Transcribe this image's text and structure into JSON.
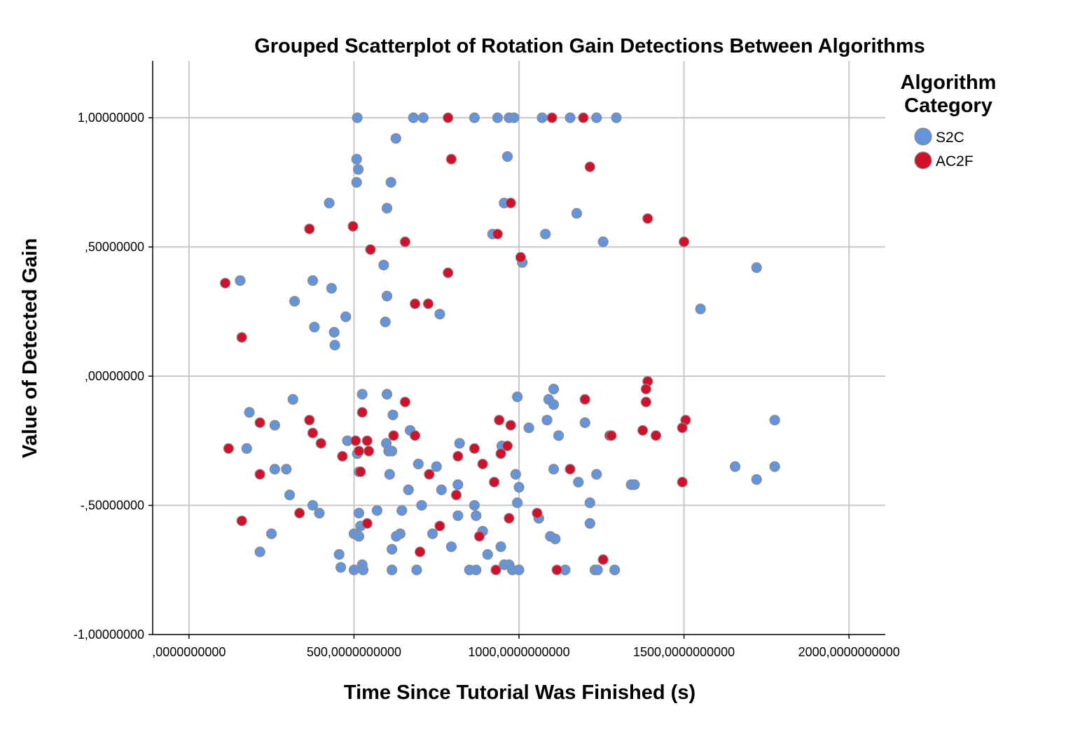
{
  "chart_data": {
    "type": "scatter",
    "title": "Grouped Scatterplot of Rotation Gain Detections Between Algorithms",
    "xlabel": "Time Since Tutorial Was Finished (s)",
    "ylabel": "Value of Detected Gain",
    "xlim": [
      -110,
      2110
    ],
    "ylim": [
      -1.0,
      1.22
    ],
    "grid": true,
    "xticks": [
      0,
      500,
      1000,
      1500,
      2000
    ],
    "xtick_labels": [
      ",0000000000",
      "500,0000000000",
      "1000,0000000000",
      "1500,0000000000",
      "2000,0000000000"
    ],
    "yticks": [
      1.0,
      0.5,
      0.0,
      -0.5,
      -1.0
    ],
    "ytick_labels": [
      "1,00000000",
      ",50000000",
      ",00000000",
      "-,50000000",
      "-1,00000000"
    ],
    "legend": {
      "title": "Algorithm Category",
      "position": "top-right"
    },
    "series": [
      {
        "name": "S2C",
        "color": "#6495dc",
        "points": [
          [
            510,
            1.0
          ],
          [
            680,
            1.0
          ],
          [
            710,
            1.0
          ],
          [
            865,
            1.0
          ],
          [
            935,
            1.0
          ],
          [
            970,
            1.0
          ],
          [
            985,
            1.0
          ],
          [
            1070,
            1.0
          ],
          [
            1155,
            1.0
          ],
          [
            1235,
            1.0
          ],
          [
            1295,
            1.0
          ],
          [
            627,
            0.92
          ],
          [
            965,
            0.85
          ],
          [
            508,
            0.84
          ],
          [
            513,
            0.8
          ],
          [
            508,
            0.75
          ],
          [
            612,
            0.75
          ],
          [
            425,
            0.67
          ],
          [
            955,
            0.67
          ],
          [
            600,
            0.65
          ],
          [
            1175,
            0.63
          ],
          [
            920,
            0.55
          ],
          [
            1080,
            0.55
          ],
          [
            1255,
            0.52
          ],
          [
            1010,
            0.44
          ],
          [
            590,
            0.43
          ],
          [
            1720,
            0.42
          ],
          [
            155,
            0.37
          ],
          [
            375,
            0.37
          ],
          [
            432,
            0.34
          ],
          [
            600,
            0.31
          ],
          [
            320,
            0.29
          ],
          [
            1550,
            0.26
          ],
          [
            760,
            0.24
          ],
          [
            475,
            0.23
          ],
          [
            595,
            0.21
          ],
          [
            380,
            0.19
          ],
          [
            440,
            0.17
          ],
          [
            442,
            0.12
          ],
          [
            1105,
            -0.05
          ],
          [
            525,
            -0.07
          ],
          [
            600,
            -0.07
          ],
          [
            995,
            -0.08
          ],
          [
            315,
            -0.09
          ],
          [
            1090,
            -0.09
          ],
          [
            1105,
            -0.11
          ],
          [
            183,
            -0.14
          ],
          [
            618,
            -0.15
          ],
          [
            1085,
            -0.17
          ],
          [
            1775,
            -0.17
          ],
          [
            1200,
            -0.18
          ],
          [
            260,
            -0.19
          ],
          [
            1030,
            -0.2
          ],
          [
            670,
            -0.21
          ],
          [
            1120,
            -0.23
          ],
          [
            480,
            -0.25
          ],
          [
            598,
            -0.26
          ],
          [
            820,
            -0.26
          ],
          [
            948,
            -0.27
          ],
          [
            175,
            -0.28
          ],
          [
            605,
            -0.29
          ],
          [
            615,
            -0.29
          ],
          [
            510,
            -0.3
          ],
          [
            695,
            -0.34
          ],
          [
            750,
            -0.35
          ],
          [
            1655,
            -0.35
          ],
          [
            1775,
            -0.35
          ],
          [
            260,
            -0.36
          ],
          [
            295,
            -0.36
          ],
          [
            1105,
            -0.36
          ],
          [
            515,
            -0.37
          ],
          [
            608,
            -0.38
          ],
          [
            990,
            -0.38
          ],
          [
            1235,
            -0.38
          ],
          [
            1180,
            -0.41
          ],
          [
            815,
            -0.42
          ],
          [
            1340,
            -0.42
          ],
          [
            1350,
            -0.42
          ],
          [
            1720,
            -0.4
          ],
          [
            1000,
            -0.43
          ],
          [
            765,
            -0.44
          ],
          [
            665,
            -0.44
          ],
          [
            305,
            -0.46
          ],
          [
            705,
            -0.5
          ],
          [
            995,
            -0.49
          ],
          [
            865,
            -0.5
          ],
          [
            1215,
            -0.49
          ],
          [
            375,
            -0.5
          ],
          [
            570,
            -0.52
          ],
          [
            645,
            -0.52
          ],
          [
            395,
            -0.53
          ],
          [
            515,
            -0.53
          ],
          [
            815,
            -0.54
          ],
          [
            870,
            -0.54
          ],
          [
            1060,
            -0.55
          ],
          [
            520,
            -0.58
          ],
          [
            1215,
            -0.57
          ],
          [
            890,
            -0.6
          ],
          [
            250,
            -0.61
          ],
          [
            500,
            -0.61
          ],
          [
            640,
            -0.61
          ],
          [
            738,
            -0.61
          ],
          [
            515,
            -0.62
          ],
          [
            628,
            -0.62
          ],
          [
            1095,
            -0.62
          ],
          [
            1110,
            -0.63
          ],
          [
            615,
            -0.67
          ],
          [
            795,
            -0.66
          ],
          [
            945,
            -0.66
          ],
          [
            215,
            -0.68
          ],
          [
            455,
            -0.69
          ],
          [
            905,
            -0.69
          ],
          [
            525,
            -0.73
          ],
          [
            955,
            -0.73
          ],
          [
            970,
            -0.73
          ],
          [
            460,
            -0.74
          ],
          [
            500,
            -0.75
          ],
          [
            528,
            -0.75
          ],
          [
            615,
            -0.75
          ],
          [
            690,
            -0.75
          ],
          [
            850,
            -0.75
          ],
          [
            870,
            -0.75
          ],
          [
            980,
            -0.75
          ],
          [
            1000,
            -0.75
          ],
          [
            1140,
            -0.75
          ],
          [
            1230,
            -0.75
          ],
          [
            1238,
            -0.75
          ],
          [
            1290,
            -0.75
          ]
        ]
      },
      {
        "name": "AC2F",
        "color": "#d2102c",
        "points": [
          [
            785,
            1.0
          ],
          [
            1100,
            1.0
          ],
          [
            1195,
            1.0
          ],
          [
            795,
            0.84
          ],
          [
            1215,
            0.81
          ],
          [
            975,
            0.67
          ],
          [
            1390,
            0.61
          ],
          [
            497,
            0.58
          ],
          [
            365,
            0.57
          ],
          [
            935,
            0.55
          ],
          [
            1500,
            0.52
          ],
          [
            655,
            0.52
          ],
          [
            550,
            0.49
          ],
          [
            1005,
            0.46
          ],
          [
            785,
            0.4
          ],
          [
            110,
            0.36
          ],
          [
            725,
            0.28
          ],
          [
            685,
            0.28
          ],
          [
            160,
            0.15
          ],
          [
            1390,
            -0.02
          ],
          [
            1385,
            -0.05
          ],
          [
            1385,
            -0.1
          ],
          [
            655,
            -0.1
          ],
          [
            1200,
            -0.09
          ],
          [
            525,
            -0.14
          ],
          [
            365,
            -0.17
          ],
          [
            1505,
            -0.17
          ],
          [
            215,
            -0.18
          ],
          [
            940,
            -0.17
          ],
          [
            975,
            -0.19
          ],
          [
            1495,
            -0.2
          ],
          [
            1375,
            -0.21
          ],
          [
            375,
            -0.22
          ],
          [
            1415,
            -0.23
          ],
          [
            620,
            -0.23
          ],
          [
            685,
            -0.23
          ],
          [
            1275,
            -0.23
          ],
          [
            400,
            -0.26
          ],
          [
            505,
            -0.25
          ],
          [
            540,
            -0.25
          ],
          [
            1280,
            -0.23
          ],
          [
            120,
            -0.28
          ],
          [
            865,
            -0.28
          ],
          [
            965,
            -0.27
          ],
          [
            515,
            -0.29
          ],
          [
            545,
            -0.29
          ],
          [
            465,
            -0.31
          ],
          [
            815,
            -0.31
          ],
          [
            945,
            -0.3
          ],
          [
            890,
            -0.34
          ],
          [
            728,
            -0.38
          ],
          [
            520,
            -0.37
          ],
          [
            1155,
            -0.36
          ],
          [
            215,
            -0.38
          ],
          [
            925,
            -0.41
          ],
          [
            1495,
            -0.41
          ],
          [
            810,
            -0.46
          ],
          [
            335,
            -0.53
          ],
          [
            1055,
            -0.53
          ],
          [
            970,
            -0.55
          ],
          [
            160,
            -0.56
          ],
          [
            540,
            -0.57
          ],
          [
            760,
            -0.58
          ],
          [
            880,
            -0.62
          ],
          [
            700,
            -0.68
          ],
          [
            1255,
            -0.71
          ],
          [
            930,
            -0.75
          ],
          [
            1115,
            -0.75
          ]
        ]
      }
    ]
  }
}
